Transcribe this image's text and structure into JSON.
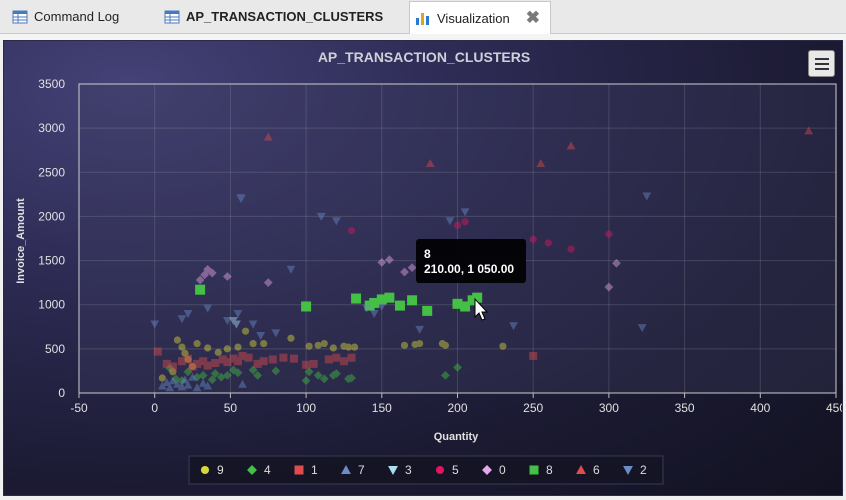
{
  "tabs": [
    {
      "label": "Command Log",
      "icon": "table-icon"
    },
    {
      "label": "AP_TRANSACTION_CLUSTERS",
      "icon": "table-icon"
    },
    {
      "label": "Visualization",
      "icon": "bar-chart-icon",
      "active": true
    }
  ],
  "tab_close_glyph": "✖",
  "tooltip": {
    "title": "8",
    "value": "210.00, 1 050.00"
  },
  "colors": {
    "9": "#d8d83a",
    "4": "#44c044",
    "1": "#e04c4c",
    "7": "#6a8cc8",
    "3": "#a8e0f0",
    "5": "#e0155f",
    "0": "#e8a8e8",
    "8": "#44c044",
    "6": "#e04c4c",
    "2": "#6a8cc8"
  },
  "chart_data": {
    "type": "scatter",
    "title": "AP_TRANSACTION_CLUSTERS",
    "xlabel": "Quantity",
    "ylabel": "Invoice_Amount",
    "xlim": [
      -50,
      450
    ],
    "ylim": [
      0,
      3500
    ],
    "xticks": [
      "-50",
      "0",
      "50",
      "100",
      "150",
      "200",
      "250",
      "300",
      "350",
      "400",
      "450"
    ],
    "yticks": [
      "0",
      "500",
      "1000",
      "1500",
      "2000",
      "2500",
      "3000",
      "3500"
    ],
    "grid": true,
    "legend_position": "bottom-center",
    "series": [
      {
        "name": "9",
        "marker": "circle",
        "points": [
          [
            5,
            170
          ],
          [
            12,
            240
          ],
          [
            15,
            600
          ],
          [
            18,
            520
          ],
          [
            20,
            450
          ],
          [
            22,
            380
          ],
          [
            25,
            300
          ],
          [
            28,
            560
          ],
          [
            35,
            510
          ],
          [
            42,
            460
          ],
          [
            48,
            500
          ],
          [
            55,
            520
          ],
          [
            60,
            700
          ],
          [
            65,
            560
          ],
          [
            72,
            560
          ],
          [
            90,
            620
          ],
          [
            102,
            530
          ],
          [
            108,
            540
          ],
          [
            112,
            560
          ],
          [
            118,
            510
          ],
          [
            125,
            530
          ],
          [
            128,
            520
          ],
          [
            132,
            520
          ],
          [
            165,
            540
          ],
          [
            172,
            550
          ],
          [
            175,
            560
          ],
          [
            190,
            560
          ],
          [
            192,
            540
          ],
          [
            230,
            530
          ]
        ]
      },
      {
        "name": "4",
        "marker": "diamond",
        "points": [
          [
            10,
            280
          ],
          [
            14,
            160
          ],
          [
            18,
            140
          ],
          [
            22,
            240
          ],
          [
            28,
            180
          ],
          [
            32,
            200
          ],
          [
            38,
            150
          ],
          [
            40,
            220
          ],
          [
            44,
            180
          ],
          [
            48,
            200
          ],
          [
            52,
            260
          ],
          [
            55,
            230
          ],
          [
            65,
            260
          ],
          [
            68,
            200
          ],
          [
            80,
            250
          ],
          [
            100,
            140
          ],
          [
            102,
            240
          ],
          [
            108,
            200
          ],
          [
            112,
            160
          ],
          [
            118,
            200
          ],
          [
            120,
            220
          ],
          [
            128,
            160
          ],
          [
            130,
            170
          ],
          [
            192,
            200
          ],
          [
            200,
            290
          ]
        ]
      },
      {
        "name": "1",
        "marker": "square",
        "points": [
          [
            2,
            470
          ],
          [
            8,
            330
          ],
          [
            12,
            300
          ],
          [
            18,
            360
          ],
          [
            22,
            390
          ],
          [
            25,
            300
          ],
          [
            28,
            330
          ],
          [
            32,
            360
          ],
          [
            35,
            310
          ],
          [
            40,
            340
          ],
          [
            45,
            380
          ],
          [
            48,
            350
          ],
          [
            52,
            390
          ],
          [
            55,
            360
          ],
          [
            58,
            420
          ],
          [
            62,
            400
          ],
          [
            68,
            330
          ],
          [
            72,
            360
          ],
          [
            78,
            380
          ],
          [
            85,
            400
          ],
          [
            92,
            390
          ],
          [
            100,
            320
          ],
          [
            105,
            330
          ],
          [
            115,
            380
          ],
          [
            120,
            400
          ],
          [
            125,
            360
          ],
          [
            130,
            400
          ],
          [
            250,
            420
          ]
        ]
      },
      {
        "name": "7",
        "marker": "triangle-up",
        "points": [
          [
            5,
            80
          ],
          [
            8,
            120
          ],
          [
            10,
            60
          ],
          [
            12,
            140
          ],
          [
            15,
            100
          ],
          [
            18,
            70
          ],
          [
            20,
            150
          ],
          [
            22,
            90
          ],
          [
            25,
            180
          ],
          [
            28,
            60
          ],
          [
            32,
            110
          ],
          [
            35,
            80
          ],
          [
            58,
            100
          ]
        ]
      },
      {
        "name": "3",
        "marker": "triangle-down",
        "points": [
          [
            52,
            820
          ],
          [
            54,
            780
          ]
        ]
      },
      {
        "name": "5",
        "marker": "circle",
        "points": [
          [
            130,
            1840
          ],
          [
            200,
            1900
          ],
          [
            205,
            1940
          ],
          [
            250,
            1740
          ],
          [
            260,
            1700
          ],
          [
            275,
            1630
          ],
          [
            300,
            1800
          ]
        ]
      },
      {
        "name": "0",
        "marker": "diamond",
        "points": [
          [
            30,
            1280
          ],
          [
            33,
            1340
          ],
          [
            35,
            1400
          ],
          [
            38,
            1360
          ],
          [
            48,
            1320
          ],
          [
            75,
            1250
          ],
          [
            150,
            1480
          ],
          [
            155,
            1510
          ],
          [
            165,
            1370
          ],
          [
            170,
            1420
          ],
          [
            300,
            1200
          ],
          [
            305,
            1470
          ]
        ]
      },
      {
        "name": "8",
        "marker": "square",
        "points": [
          [
            30,
            1170
          ],
          [
            100,
            980
          ],
          [
            133,
            1070
          ],
          [
            142,
            990
          ],
          [
            145,
            1020
          ],
          [
            150,
            1060
          ],
          [
            155,
            1080
          ],
          [
            162,
            990
          ],
          [
            170,
            1050
          ],
          [
            180,
            930
          ],
          [
            200,
            1010
          ],
          [
            205,
            980
          ],
          [
            210,
            1050
          ],
          [
            213,
            1080
          ]
        ]
      },
      {
        "name": "6",
        "marker": "triangle-up",
        "points": [
          [
            75,
            2900
          ],
          [
            182,
            2600
          ],
          [
            255,
            2600
          ],
          [
            275,
            2800
          ],
          [
            432,
            2970
          ]
        ]
      },
      {
        "name": "2",
        "marker": "triangle-down",
        "points": [
          [
            0,
            780
          ],
          [
            18,
            840
          ],
          [
            22,
            900
          ],
          [
            35,
            960
          ],
          [
            48,
            820
          ],
          [
            55,
            900
          ],
          [
            65,
            780
          ],
          [
            70,
            650
          ],
          [
            80,
            680
          ],
          [
            90,
            1400
          ],
          [
            110,
            2000
          ],
          [
            120,
            1950
          ],
          [
            140,
            960
          ],
          [
            145,
            900
          ],
          [
            150,
            980
          ],
          [
            175,
            720
          ],
          [
            195,
            1950
          ],
          [
            205,
            2050
          ],
          [
            237,
            760
          ],
          [
            322,
            740
          ],
          [
            325,
            2230
          ],
          [
            57,
            2200
          ],
          [
            57,
            2210
          ]
        ]
      }
    ]
  }
}
